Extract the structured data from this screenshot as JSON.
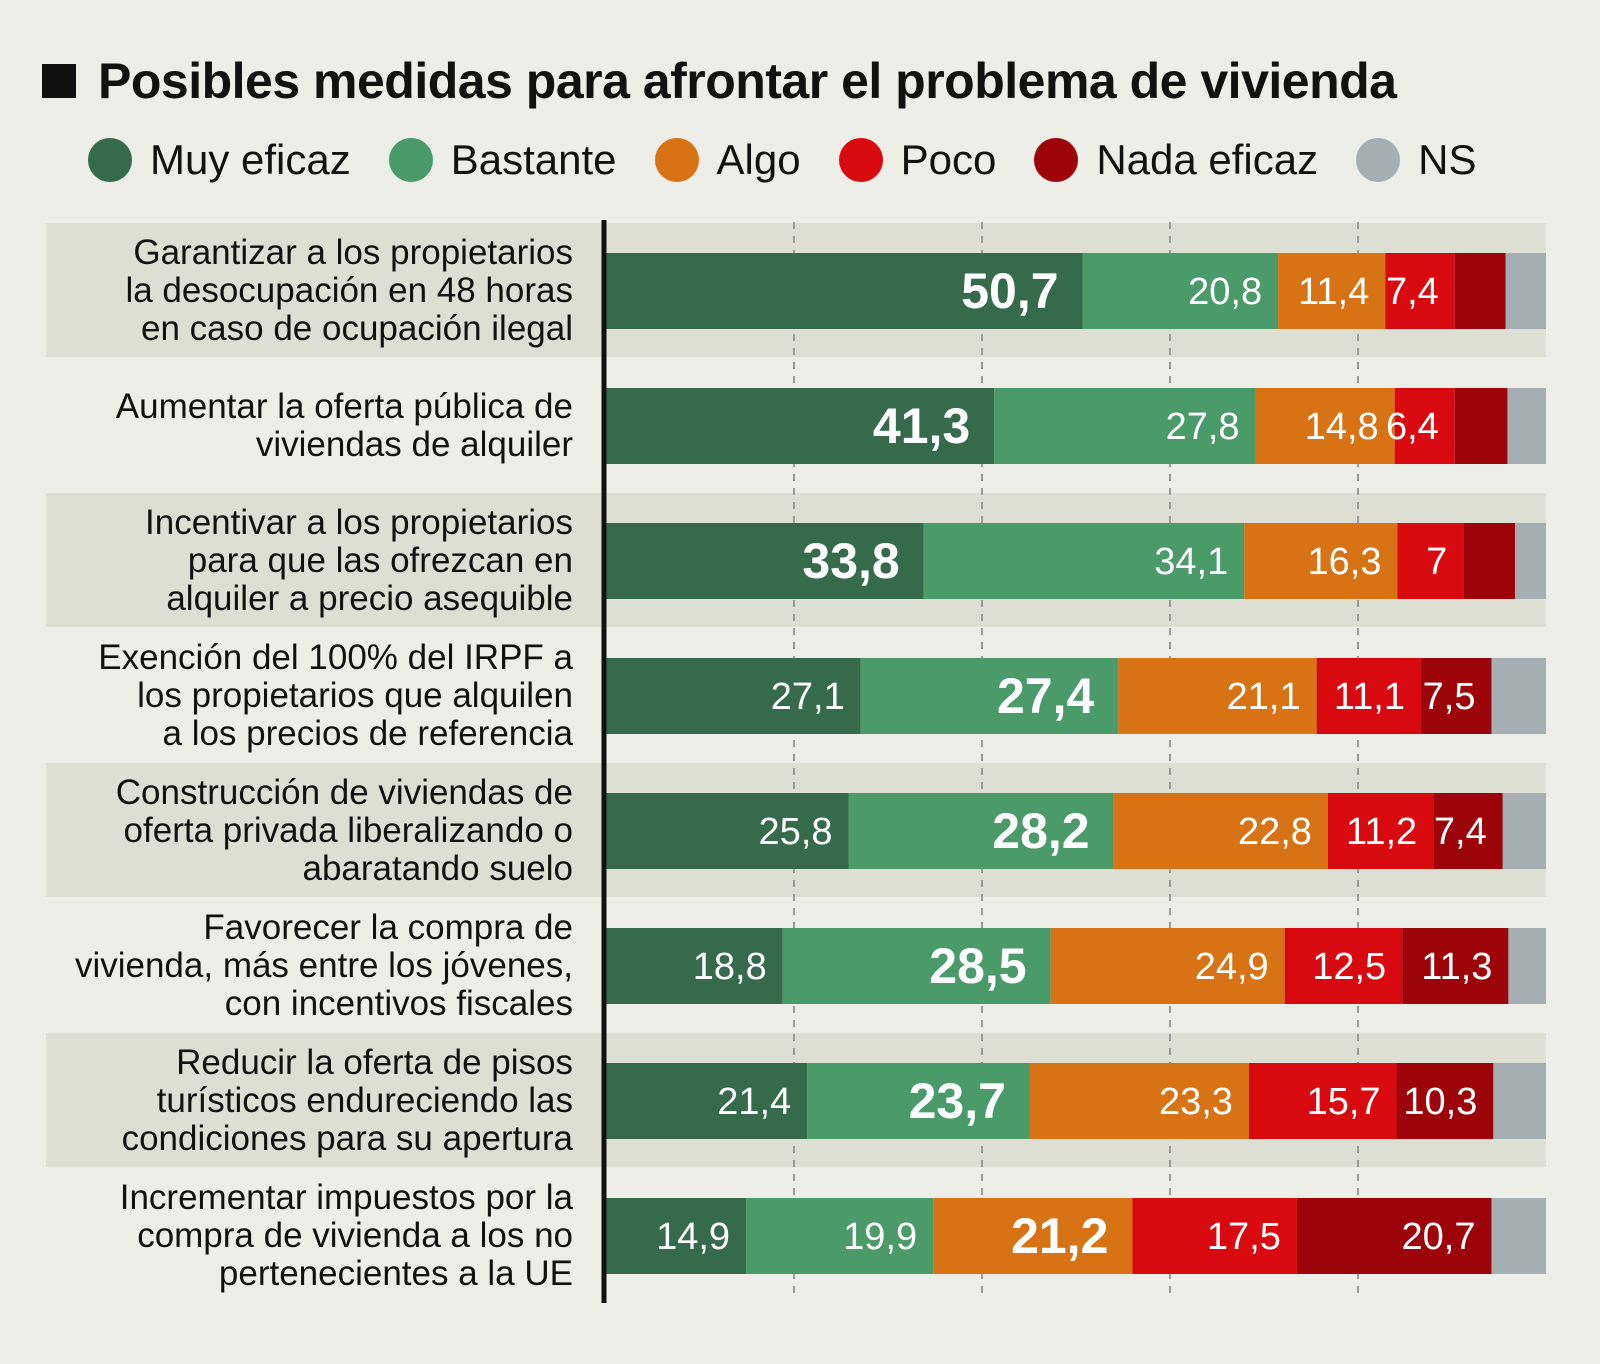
{
  "chart_data": {
    "type": "bar",
    "orientation": "horizontal",
    "stacked": true,
    "title": "Posibles medidas para afrontar el problema de vivienda",
    "xlabel": "",
    "ylabel": "",
    "xlim": [
      0,
      100
    ],
    "legend_position": "top",
    "categories": [
      [
        "Garantizar a los propietarios",
        "la desocupación en 48 horas",
        "en caso de ocupación ilegal"
      ],
      [
        "Aumentar la oferta pública de",
        "viviendas de alquiler"
      ],
      [
        "Incentivar a los propietarios",
        "para que las ofrezcan en",
        "alquiler a precio asequible"
      ],
      [
        "Exención del 100% del IRPF a",
        "los propietarios que alquilen",
        "a los precios de referencia"
      ],
      [
        "Construcción de viviendas de",
        "oferta privada liberalizando o",
        "abaratando suelo"
      ],
      [
        "Favorecer la compra de",
        "vivienda, más entre los jóvenes,",
        "con incentivos fiscales"
      ],
      [
        "Reducir la oferta de pisos",
        "turísticos endureciendo las",
        "condiciones para su apertura"
      ],
      [
        "Incrementar impuestos por la",
        "compra de vivienda a los no",
        "pertenecientes a la UE"
      ]
    ],
    "series": [
      {
        "name": "Muy eficaz",
        "color": "#356b4b",
        "values": [
          50.7,
          41.3,
          33.8,
          27.1,
          25.8,
          18.8,
          21.4,
          14.9
        ],
        "labels": [
          "50,7",
          "41,3",
          "33,8",
          "27,1",
          "25,8",
          "18,8",
          "21,4",
          "14,9"
        ]
      },
      {
        "name": "Bastante",
        "color": "#4a9a6a",
        "values": [
          20.8,
          27.8,
          34.1,
          27.4,
          28.2,
          28.5,
          23.7,
          19.9
        ],
        "labels": [
          "20,8",
          "27,8",
          "34,1",
          "27,4",
          "28,2",
          "28,5",
          "23,7",
          "19,9"
        ]
      },
      {
        "name": "Algo",
        "color": "#d87315",
        "values": [
          11.4,
          14.8,
          16.3,
          21.1,
          22.8,
          24.9,
          23.3,
          21.2
        ],
        "labels": [
          "11,4",
          "14,8",
          "16,3",
          "21,1",
          "22,8",
          "24,9",
          "23,3",
          "21,2"
        ]
      },
      {
        "name": "Poco",
        "color": "#d8090f",
        "values": [
          7.4,
          6.4,
          7,
          11.1,
          11.2,
          12.5,
          15.7,
          17.5
        ],
        "labels": [
          "7,4",
          "6,4",
          "7",
          "11,1",
          "11,2",
          "12,5",
          "15,7",
          "17,5"
        ]
      },
      {
        "name": "Nada eficaz",
        "color": "#9c0409",
        "values": [
          5.4,
          5.6,
          5.5,
          7.5,
          7.4,
          11.3,
          10.3,
          20.7
        ],
        "labels": [
          "",
          "",
          "",
          "7,5",
          "7,4",
          "11,3",
          "10,3",
          "20,7"
        ]
      },
      {
        "name": "NS",
        "color": "#a5aeb2",
        "values": [
          4.3,
          4.1,
          3.3,
          5.8,
          4.6,
          4.0,
          5.6,
          5.8
        ],
        "labels": [
          "",
          "",
          "",
          "",
          "",
          "",
          "",
          ""
        ]
      }
    ],
    "bold_label_series_per_row": [
      0,
      0,
      0,
      1,
      1,
      1,
      1,
      2
    ]
  }
}
